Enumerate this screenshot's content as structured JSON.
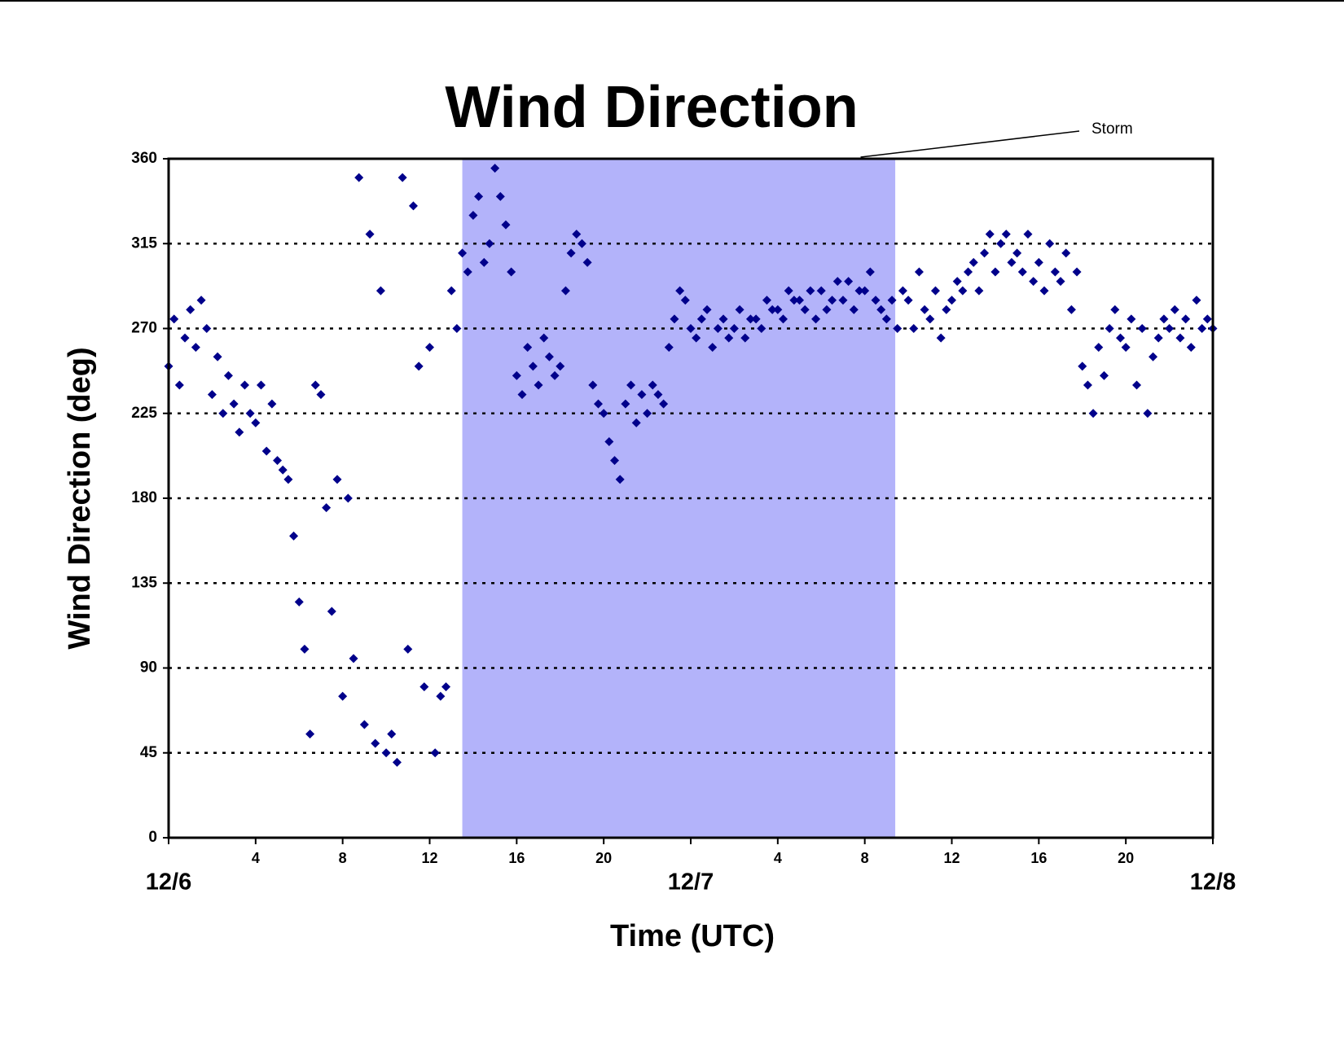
{
  "chart_data": {
    "type": "scatter",
    "title": "Wind Direction",
    "x_label": "Time (UTC)",
    "y_label": "Wind Direction (deg)",
    "xlim": [
      0,
      48
    ],
    "xticks": [
      {
        "value": 0,
        "label": "12/6"
      },
      4,
      8,
      12,
      16,
      20,
      {
        "value": 24,
        "label": "12/7"
      },
      {
        "value": 28,
        "label": "4"
      },
      {
        "value": 32,
        "label": "8"
      },
      {
        "value": 36,
        "label": "12"
      },
      {
        "value": 40,
        "label": "16"
      },
      {
        "value": 44,
        "label": "20"
      },
      {
        "value": 48,
        "label": "12/8"
      }
    ],
    "ylim": [
      0,
      360
    ],
    "yticks": [
      0,
      45,
      90,
      135,
      180,
      225,
      270,
      315,
      360
    ],
    "grid": true,
    "shaded_region": {
      "label": "Storm",
      "x": [
        13.5,
        33.4
      ],
      "color": "#b3b3fa"
    },
    "series": [
      {
        "color": "#00008b",
        "marker": "diamond",
        "x": [
          0,
          0.25,
          0.5,
          0.75,
          1,
          1.25,
          1.5,
          1.75,
          2,
          2.25,
          2.5,
          2.75,
          3,
          3.25,
          3.5,
          3.75,
          4,
          4.25,
          4.5,
          4.75,
          5,
          5.25,
          5.5,
          5.75,
          6,
          6.25,
          6.5,
          6.75,
          7,
          7.25,
          7.5,
          7.75,
          8,
          8.25,
          8.5,
          8.75,
          9,
          9.25,
          9.5,
          9.75,
          10,
          10.25,
          10.5,
          10.75,
          11,
          11.25,
          11.5,
          11.75,
          12,
          12.25,
          12.5,
          12.75,
          13,
          13.25,
          13.5,
          13.75,
          14,
          14.25,
          14.5,
          14.75,
          15,
          15.25,
          15.5,
          15.75,
          16,
          16.25,
          16.5,
          16.75,
          17,
          17.25,
          17.5,
          17.75,
          18,
          18.25,
          18.5,
          18.75,
          19,
          19.25,
          19.5,
          19.75,
          20,
          20.25,
          20.5,
          20.75,
          21,
          21.25,
          21.5,
          21.75,
          22,
          22.25,
          22.5,
          22.75,
          23,
          23.25,
          23.5,
          23.75,
          24,
          24.25,
          24.5,
          24.75,
          25,
          25.25,
          25.5,
          25.75,
          26,
          26.25,
          26.5,
          26.75,
          27,
          27.25,
          27.5,
          27.75,
          28,
          28.25,
          28.5,
          28.75,
          29,
          29.25,
          29.5,
          29.75,
          30,
          30.25,
          30.5,
          30.75,
          31,
          31.25,
          31.5,
          31.75,
          32,
          32.25,
          32.5,
          32.75,
          33,
          33.25,
          33.5,
          33.75,
          34,
          34.25,
          34.5,
          34.75,
          35,
          35.25,
          35.5,
          35.75,
          36,
          36.25,
          36.5,
          36.75,
          37,
          37.25,
          37.5,
          37.75,
          38,
          38.25,
          38.5,
          38.75,
          39,
          39.25,
          39.5,
          39.75,
          40,
          40.25,
          40.5,
          40.75,
          41,
          41.25,
          41.5,
          41.75,
          42,
          42.25,
          42.5,
          42.75,
          43,
          43.25,
          43.5,
          43.75,
          44,
          44.25,
          44.5,
          44.75,
          45,
          45.25,
          45.5,
          45.75,
          46,
          46.25,
          46.5,
          46.75,
          47,
          47.25,
          47.5,
          47.75,
          48
        ],
        "values": [
          250,
          275,
          240,
          265,
          280,
          260,
          285,
          270,
          235,
          255,
          225,
          245,
          230,
          215,
          240,
          225,
          220,
          240,
          205,
          230,
          200,
          195,
          190,
          160,
          125,
          100,
          55,
          240,
          235,
          175,
          120,
          190,
          75,
          180,
          95,
          350,
          60,
          320,
          50,
          290,
          45,
          55,
          40,
          350,
          100,
          335,
          250,
          80,
          260,
          45,
          75,
          80,
          290,
          270,
          310,
          300,
          330,
          340,
          305,
          315,
          355,
          340,
          325,
          300,
          245,
          235,
          260,
          250,
          240,
          265,
          255,
          245,
          250,
          290,
          310,
          320,
          315,
          305,
          240,
          230,
          225,
          210,
          200,
          190,
          230,
          240,
          220,
          235,
          225,
          240,
          235,
          230,
          260,
          275,
          290,
          285,
          270,
          265,
          275,
          280,
          260,
          270,
          275,
          265,
          270,
          280,
          265,
          275,
          275,
          270,
          285,
          280,
          280,
          275,
          290,
          285,
          285,
          280,
          290,
          275,
          290,
          280,
          285,
          295,
          285,
          295,
          280,
          290,
          290,
          300,
          285,
          280,
          275,
          285,
          270,
          290,
          285,
          270,
          300,
          280,
          275,
          290,
          265,
          280,
          285,
          295,
          290,
          300,
          305,
          290,
          310,
          320,
          300,
          315,
          320,
          305,
          310,
          300,
          320,
          295,
          305,
          290,
          315,
          300,
          295,
          310,
          280,
          300,
          250,
          240,
          225,
          260,
          245,
          270,
          280,
          265,
          260,
          275,
          240,
          270,
          225,
          255,
          265,
          275,
          270,
          280,
          265,
          275,
          260,
          285,
          270,
          275,
          270
        ]
      }
    ]
  }
}
